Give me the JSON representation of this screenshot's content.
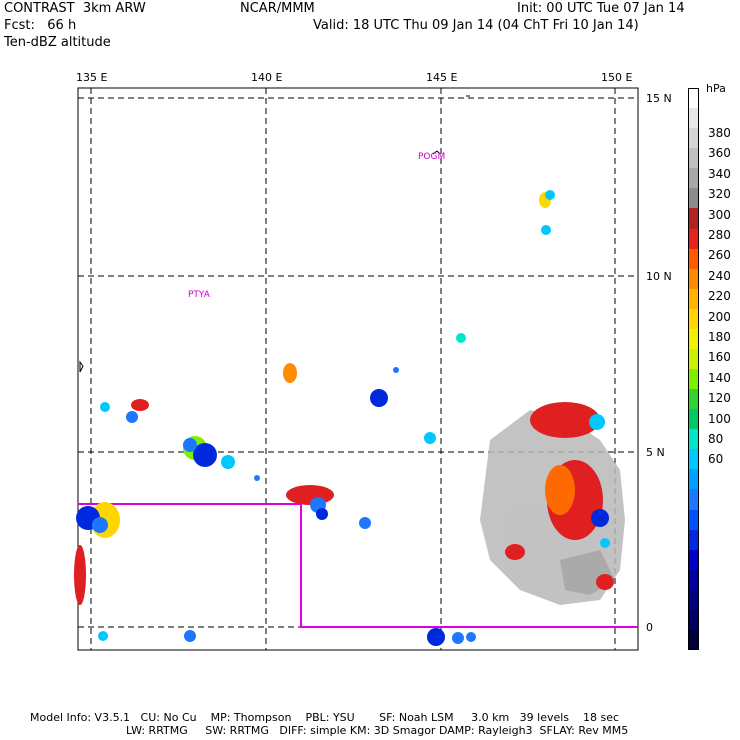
{
  "header": {
    "line1_left": "CONTRAST  3km ARW",
    "line1_center": "NCAR/MMM",
    "line1_right": "Init: 00 UTC Tue 07 Jan 14",
    "line2_left": "Fcst:   66 h",
    "line2_right": "Valid: 18 UTC Thu 09 Jan 14 (04 ChT Fri 10 Jan 14)",
    "line3_left": "Ten-dBZ altitude"
  },
  "map": {
    "lon_labels": [
      "135 E",
      "140 E",
      "145 E",
      "150 E"
    ],
    "lat_labels": [
      "15 N",
      "10 N",
      "5 N",
      "0"
    ],
    "stations": [
      "POGM",
      "PTYA"
    ]
  },
  "colorbar": {
    "unit": "hPa",
    "labels": [
      "380",
      "360",
      "340",
      "320",
      "300",
      "280",
      "260",
      "240",
      "220",
      "200",
      "180",
      "160",
      "140",
      "120",
      "100",
      "80",
      "60"
    ],
    "colors": [
      "#ffffff",
      "#e8e8e8",
      "#d4d4d4",
      "#bfbfbf",
      "#a8a8a8",
      "#8c8c8c",
      "#b22222",
      "#e8231e",
      "#ff5a00",
      "#ff8c00",
      "#ffb400",
      "#ffd700",
      "#f0f000",
      "#c8f000",
      "#7cf000",
      "#32d232",
      "#00c864",
      "#00e6c8",
      "#00c8ff",
      "#00a0ff",
      "#1e78ff",
      "#0050ff",
      "#0028dc",
      "#0000c8",
      "#0000a0",
      "#000080",
      "#000060",
      "#000040"
    ]
  },
  "footer": {
    "line1": "Model Info: V3.5.1   CU: No Cu    MP: Thompson    PBL: YSU       SF: Noah LSM     3.0 km   39 levels    18 sec",
    "line2": "LW: RRTMG     SW: RRTMG   DIFF: simple KM: 3D Smagor DAMP: Rayleigh3  SFLAY: Rev MM5"
  }
}
